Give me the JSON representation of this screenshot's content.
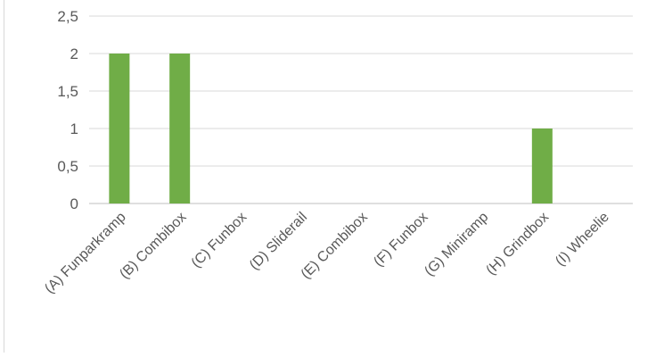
{
  "chart_data": {
    "type": "bar",
    "title": "",
    "xlabel": "",
    "ylabel": "",
    "categories": [
      "(A) Funparkramp",
      "(B) Combibox",
      "(C) Funbox",
      "(D) Sliderail",
      "(E) Combibox",
      "(F) Funbox",
      "(G) Miniramp",
      "(H) Grindbox",
      "(I) Wheelie"
    ],
    "values": [
      2,
      2,
      0,
      0,
      0,
      0,
      0,
      1,
      0
    ],
    "ylim": [
      0,
      2.5
    ],
    "yticks": [
      "0",
      "0,5",
      "1",
      "1,5",
      "2",
      "2,5"
    ],
    "grid": true,
    "legend": "none",
    "colors": {
      "bar": "#70ad47",
      "grid": "#d9d9d9",
      "axis": "#bfbfbf",
      "text": "#595959"
    }
  }
}
